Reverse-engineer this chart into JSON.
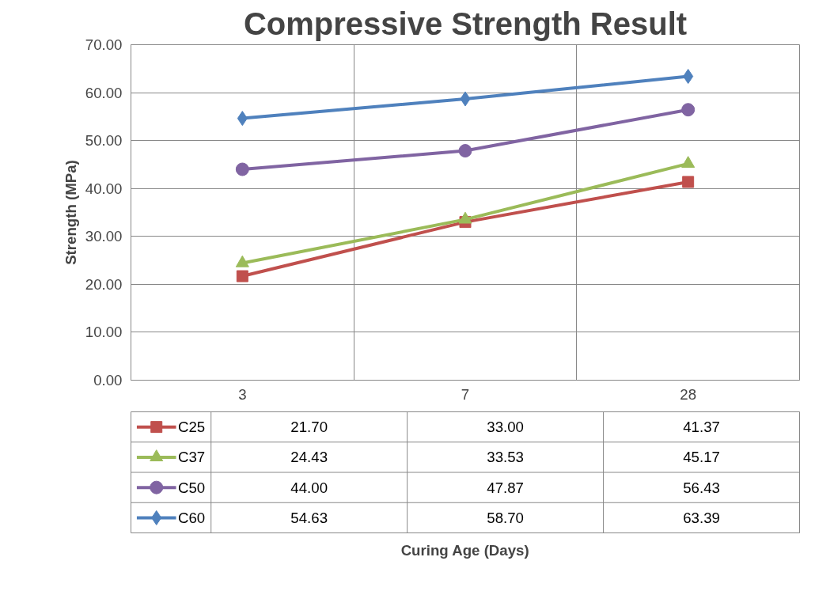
{
  "chart_data": {
    "type": "line",
    "title": "Compressive Strength Result",
    "annotations": [
      "Curing Age (Days)"
    ],
    "ylabel": "Strength (MPa)",
    "categories": [
      "3",
      "7",
      "28"
    ],
    "series": [
      {
        "name": "C25",
        "color": "#c0504d",
        "marker": "square",
        "values": [
          21.7,
          33.0,
          41.37
        ],
        "value_labels": [
          "21.70",
          "33.00",
          "41.37"
        ]
      },
      {
        "name": "C37",
        "color": "#9bbb59",
        "marker": "triangle",
        "values": [
          24.43,
          33.53,
          45.17
        ],
        "value_labels": [
          "24.43",
          "33.53",
          "45.17"
        ]
      },
      {
        "name": "C50",
        "color": "#8064a2",
        "marker": "circle",
        "values": [
          44.0,
          47.87,
          56.43
        ],
        "value_labels": [
          "44.00",
          "47.87",
          "56.43"
        ]
      },
      {
        "name": "C60",
        "color": "#4f81bd",
        "marker": "diamond",
        "values": [
          54.63,
          58.7,
          63.39
        ],
        "value_labels": [
          "54.63",
          "58.70",
          "63.39"
        ]
      }
    ],
    "ylim": [
      0,
      70
    ],
    "yticks": [
      {
        "value": 0,
        "label": "0.00"
      },
      {
        "value": 10,
        "label": "10.00"
      },
      {
        "value": 20,
        "label": "20.00"
      },
      {
        "value": 30,
        "label": "30.00"
      },
      {
        "value": 40,
        "label": "40.00"
      },
      {
        "value": 50,
        "label": "50.00"
      },
      {
        "value": 60,
        "label": "60.00"
      },
      {
        "value": 70,
        "label": "70.00"
      }
    ],
    "grid": true,
    "legend": "bottom",
    "line_style": "solid"
  }
}
